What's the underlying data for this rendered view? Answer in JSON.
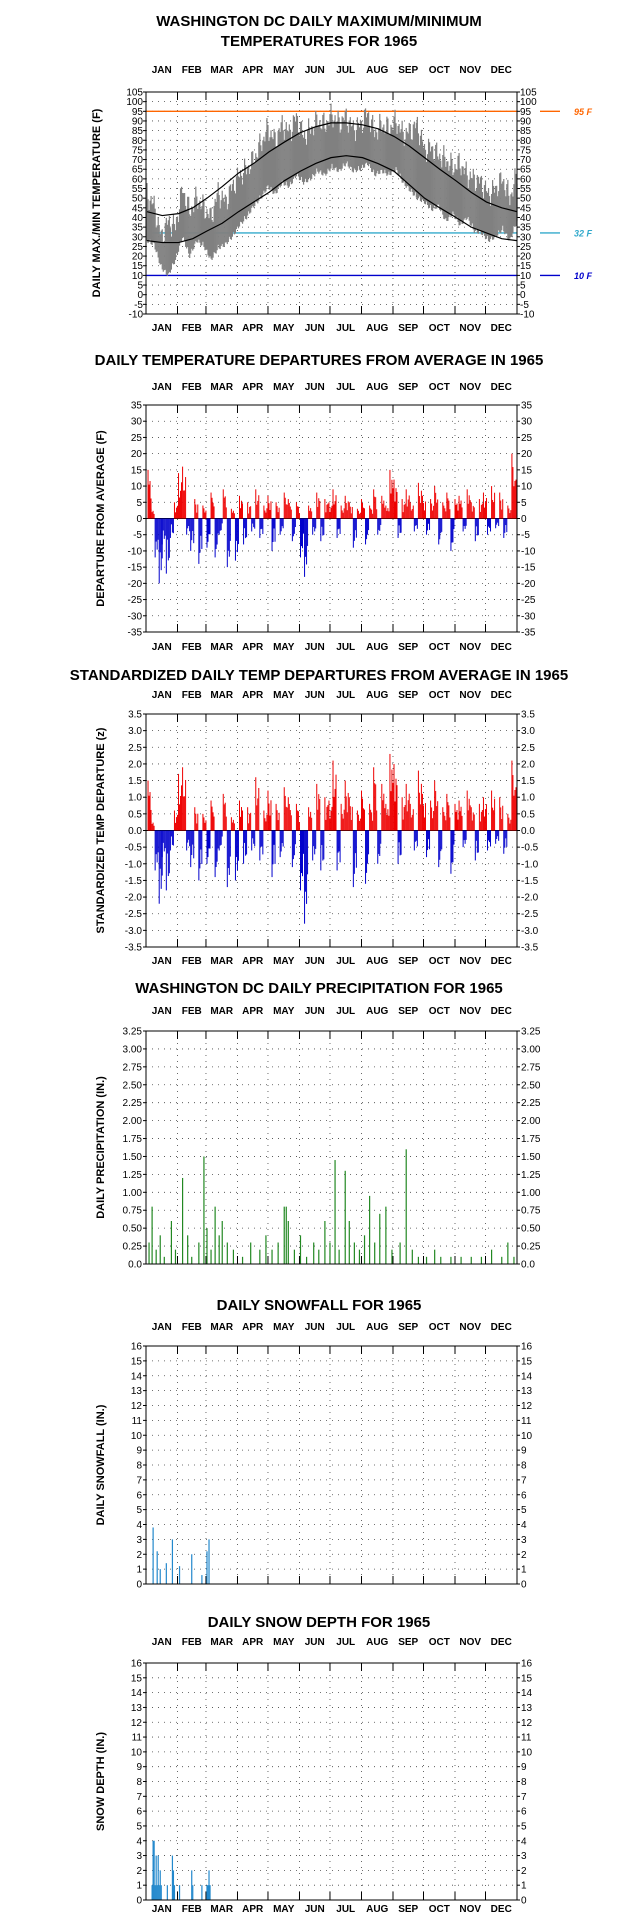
{
  "chart_data": [
    {
      "type": "line",
      "title_lines": [
        "WASHINGTON DC DAILY MAXIMUM/MINIMUM",
        "TEMPERATURES FOR 1965"
      ],
      "ylabel": "DAILY MAX./MIN TEMPERATURE (F)",
      "ylim": [
        -10,
        105
      ],
      "yticks": [
        -10,
        -5,
        0,
        5,
        10,
        15,
        20,
        25,
        30,
        35,
        40,
        45,
        50,
        55,
        60,
        65,
        70,
        75,
        80,
        85,
        90,
        95,
        100,
        105
      ],
      "months": [
        "JAN",
        "FEB",
        "MAR",
        "APR",
        "MAY",
        "JUN",
        "JUL",
        "AUG",
        "SEP",
        "OCT",
        "NOV",
        "DEC"
      ],
      "reference_lines": [
        {
          "label": "95 F",
          "value": 95,
          "color": "#ff6600"
        },
        {
          "label": "32 F",
          "value": 32,
          "color": "#33aacc"
        },
        {
          "label": "10 F",
          "value": 10,
          "color": "#0000cc"
        }
      ],
      "normals": {
        "max": {
          "day": [
            1,
            16,
            32,
            46,
            60,
            75,
            91,
            106,
            121,
            136,
            152,
            167,
            182,
            197,
            213,
            228,
            244,
            259,
            274,
            289,
            305,
            320,
            335,
            350,
            365
          ],
          "value": [
            43,
            41,
            42,
            45,
            50,
            56,
            63,
            68,
            74,
            79,
            84,
            87,
            89,
            89,
            88,
            86,
            82,
            77,
            71,
            65,
            59,
            53,
            48,
            45,
            43
          ]
        },
        "min": {
          "day": [
            1,
            16,
            32,
            46,
            60,
            75,
            91,
            106,
            121,
            136,
            152,
            167,
            182,
            197,
            213,
            228,
            244,
            259,
            274,
            289,
            305,
            320,
            335,
            350,
            365
          ],
          "value": [
            28,
            27,
            27,
            29,
            33,
            37,
            43,
            48,
            53,
            59,
            64,
            68,
            71,
            72,
            71,
            68,
            64,
            57,
            50,
            45,
            40,
            35,
            32,
            29,
            28
          ]
        }
      },
      "observed": {
        "max": {
          "day": [
            1,
            8,
            15,
            22,
            29,
            36,
            43,
            50,
            57,
            64,
            71,
            78,
            85,
            92,
            99,
            106,
            113,
            120,
            127,
            134,
            141,
            148,
            155,
            162,
            169,
            176,
            183,
            190,
            197,
            204,
            211,
            218,
            225,
            232,
            239,
            246,
            253,
            260,
            267,
            274,
            281,
            288,
            295,
            302,
            309,
            316,
            323,
            330,
            337,
            344,
            351,
            358,
            365
          ],
          "value": [
            52,
            46,
            30,
            38,
            35,
            55,
            43,
            50,
            45,
            40,
            53,
            48,
            56,
            62,
            65,
            70,
            78,
            86,
            80,
            88,
            84,
            92,
            82,
            86,
            90,
            88,
            93,
            89,
            92,
            86,
            88,
            94,
            84,
            88,
            86,
            90,
            83,
            85,
            88,
            75,
            76,
            72,
            70,
            66,
            68,
            62,
            60,
            58,
            52,
            55,
            60,
            50,
            62
          ]
        },
        "min": {
          "day": [
            1,
            8,
            15,
            22,
            29,
            36,
            43,
            50,
            57,
            64,
            71,
            78,
            85,
            92,
            99,
            106,
            113,
            120,
            127,
            134,
            141,
            148,
            155,
            162,
            169,
            176,
            183,
            190,
            197,
            204,
            211,
            218,
            225,
            232,
            239,
            246,
            253,
            260,
            267,
            274,
            281,
            288,
            295,
            302,
            309,
            316,
            323,
            330,
            337,
            344,
            351,
            358,
            365
          ],
          "value": [
            30,
            28,
            16,
            12,
            20,
            32,
            22,
            30,
            27,
            20,
            26,
            28,
            32,
            38,
            42,
            48,
            52,
            58,
            54,
            60,
            58,
            64,
            60,
            62,
            66,
            64,
            68,
            66,
            70,
            66,
            67,
            70,
            64,
            66,
            64,
            67,
            60,
            56,
            52,
            50,
            46,
            48,
            40,
            44,
            38,
            42,
            35,
            34,
            30,
            32,
            36,
            30,
            40
          ]
        }
      }
    },
    {
      "type": "bar",
      "title": "DAILY TEMPERATURE DEPARTURES FROM AVERAGE IN 1965",
      "ylabel": "DEPARTURE FROM AVERAGE (F)",
      "ylim": [
        -35,
        35
      ],
      "yticks": [
        -35,
        -30,
        -25,
        -20,
        -15,
        -10,
        -5,
        0,
        5,
        10,
        15,
        20,
        25,
        30,
        35
      ],
      "months": [
        "JAN",
        "FEB",
        "MAR",
        "APR",
        "MAY",
        "JUN",
        "JUL",
        "AUG",
        "SEP",
        "OCT",
        "NOV",
        "DEC"
      ],
      "colors": {
        "positive": "#ee0000",
        "negative": "#0000cc"
      },
      "x": [
        2,
        5,
        9,
        13,
        16,
        20,
        24,
        28,
        32,
        36,
        40,
        44,
        48,
        52,
        56,
        60,
        64,
        68,
        72,
        76,
        80,
        84,
        88,
        92,
        96,
        100,
        104,
        108,
        112,
        116,
        120,
        124,
        128,
        132,
        136,
        140,
        144,
        148,
        152,
        156,
        160,
        164,
        168,
        172,
        176,
        180,
        184,
        188,
        192,
        196,
        200,
        204,
        208,
        212,
        216,
        220,
        224,
        228,
        232,
        236,
        240,
        244,
        248,
        252,
        256,
        260,
        264,
        268,
        272,
        276,
        280,
        284,
        288,
        292,
        296,
        300,
        304,
        308,
        312,
        316,
        320,
        324,
        328,
        332,
        336,
        340,
        344,
        348,
        352,
        356,
        360,
        364
      ],
      "values": [
        15,
        3,
        -12,
        -20,
        -8,
        -17,
        -6,
        5,
        14,
        16,
        -5,
        -10,
        6,
        -14,
        4,
        -9,
        8,
        -12,
        -5,
        9,
        -15,
        3,
        -13,
        7,
        -8,
        5,
        -4,
        9,
        -6,
        4,
        7,
        -10,
        5,
        -5,
        8,
        6,
        -7,
        5,
        -12,
        -18,
        4,
        -5,
        8,
        -7,
        6,
        5,
        9,
        -6,
        4,
        7,
        5,
        -9,
        3,
        6,
        -8,
        4,
        9,
        -5,
        7,
        4,
        15,
        12,
        -6,
        6,
        9,
        5,
        -4,
        11,
        7,
        -5,
        6,
        10,
        -8,
        5,
        8,
        -10,
        6,
        7,
        -4,
        9,
        5,
        -7,
        6,
        8,
        -5,
        10,
        -3,
        8,
        -6,
        4,
        20,
        12
      ]
    },
    {
      "type": "bar",
      "title": "STANDARDIZED DAILY TEMP DEPARTURES FROM AVERAGE IN 1965",
      "ylabel": "STANDARDIZED TEMP DEPARTURE (z)",
      "ylim": [
        -3.5,
        3.5
      ],
      "yticks": [
        "-3.5",
        "-3.0",
        "-2.5",
        "-2.0",
        "-1.5",
        "-1.0",
        "-0.5",
        "0.0",
        "0.5",
        "1.0",
        "1.5",
        "2.0",
        "2.5",
        "3.0",
        "3.5"
      ],
      "months": [
        "JAN",
        "FEB",
        "MAR",
        "APR",
        "MAY",
        "JUN",
        "JUL",
        "AUG",
        "SEP",
        "OCT",
        "NOV",
        "DEC"
      ],
      "colors": {
        "positive": "#ee0000",
        "negative": "#0000cc"
      },
      "x": [
        2,
        5,
        9,
        13,
        16,
        20,
        24,
        28,
        32,
        36,
        40,
        44,
        48,
        52,
        56,
        60,
        64,
        68,
        72,
        76,
        80,
        84,
        88,
        92,
        96,
        100,
        104,
        108,
        112,
        116,
        120,
        124,
        128,
        132,
        136,
        140,
        144,
        148,
        152,
        156,
        160,
        164,
        168,
        172,
        176,
        180,
        184,
        188,
        192,
        196,
        200,
        204,
        208,
        212,
        216,
        220,
        224,
        228,
        232,
        236,
        240,
        244,
        248,
        252,
        256,
        260,
        264,
        268,
        272,
        276,
        280,
        284,
        288,
        292,
        296,
        300,
        304,
        308,
        312,
        316,
        320,
        324,
        328,
        332,
        336,
        340,
        344,
        348,
        352,
        356,
        360,
        364
      ],
      "values": [
        1.5,
        0.3,
        -1.2,
        -2.2,
        -0.8,
        -1.8,
        -0.6,
        0.6,
        1.7,
        1.9,
        -0.6,
        -1.1,
        0.7,
        -1.5,
        0.5,
        -1.0,
        0.9,
        -1.4,
        -0.6,
        1.1,
        -1.7,
        0.4,
        -1.5,
        0.9,
        -1.0,
        0.7,
        -0.6,
        1.6,
        -0.9,
        0.6,
        1.2,
        -1.4,
        0.8,
        -0.8,
        1.3,
        1.0,
        -1.1,
        0.8,
        -1.8,
        -2.8,
        0.7,
        -0.9,
        1.4,
        -1.2,
        1.0,
        0.9,
        2.1,
        -1.2,
        0.8,
        1.5,
        1.0,
        -1.7,
        0.6,
        1.2,
        -1.6,
        0.8,
        1.9,
        -1.0,
        1.4,
        0.8,
        2.3,
        2.0,
        -1.0,
        1.0,
        1.4,
        0.8,
        -0.6,
        1.8,
        1.1,
        -0.8,
        0.9,
        1.5,
        -1.1,
        0.7,
        1.1,
        -1.3,
        0.8,
        0.9,
        -0.5,
        1.2,
        0.7,
        -0.9,
        0.8,
        1.0,
        -0.6,
        1.2,
        -0.4,
        1.0,
        -0.7,
        0.5,
        2.1,
        1.3
      ]
    },
    {
      "type": "bar",
      "title": "WASHINGTON DC DAILY PRECIPITATION FOR 1965",
      "ylabel": "DAILY PRECIPITATION (IN.)",
      "ylim": [
        0,
        3.25
      ],
      "yticks": [
        "0.0",
        "0.25",
        "0.50",
        "0.75",
        "1.00",
        "1.25",
        "1.50",
        "1.75",
        "2.00",
        "2.25",
        "2.50",
        "2.75",
        "3.00",
        "3.25"
      ],
      "months": [
        "JAN",
        "FEB",
        "MAR",
        "APR",
        "MAY",
        "JUN",
        "JUL",
        "AUG",
        "SEP",
        "OCT",
        "NOV",
        "DEC"
      ],
      "color": "#228822",
      "x": [
        3,
        6,
        10,
        14,
        18,
        25,
        29,
        36,
        41,
        45,
        52,
        57,
        60,
        64,
        68,
        72,
        75,
        80,
        86,
        95,
        103,
        112,
        118,
        124,
        130,
        136,
        138,
        140,
        146,
        152,
        158,
        165,
        170,
        176,
        181,
        186,
        190,
        196,
        200,
        205,
        210,
        215,
        220,
        225,
        230,
        236,
        242,
        250,
        256,
        262,
        268,
        276,
        284,
        290,
        300,
        310,
        320,
        330,
        340,
        350,
        356,
        362
      ],
      "values": [
        0.3,
        0.8,
        0.2,
        0.4,
        0.1,
        0.6,
        0.2,
        1.2,
        0.4,
        0.1,
        0.3,
        1.5,
        0.5,
        0.2,
        0.8,
        0.4,
        0.6,
        0.3,
        0.2,
        0.1,
        0.3,
        0.2,
        0.4,
        0.2,
        0.3,
        0.8,
        0.8,
        0.6,
        0.2,
        0.4,
        0.1,
        0.3,
        0.2,
        0.6,
        0.3,
        1.45,
        0.2,
        1.3,
        0.6,
        0.3,
        0.2,
        0.4,
        0.95,
        0.3,
        0.7,
        0.8,
        0.2,
        0.3,
        1.6,
        0.2,
        0.1,
        0.1,
        0.2,
        0.1,
        0.1,
        0.1,
        0.1,
        0.1,
        0.2,
        0.1,
        0.3,
        0.1
      ]
    },
    {
      "type": "bar",
      "title": "DAILY SNOWFALL FOR 1965",
      "ylabel": "DAILY SNOWFALL (IN.)",
      "ylim": [
        0,
        16
      ],
      "yticks": [
        0,
        1,
        2,
        3,
        4,
        5,
        6,
        7,
        8,
        9,
        10,
        11,
        12,
        13,
        14,
        15,
        16
      ],
      "months": [
        "JAN",
        "FEB",
        "MAR",
        "APR",
        "MAY",
        "JUN",
        "JUL",
        "AUG",
        "SEP",
        "OCT",
        "NOV",
        "DEC"
      ],
      "color": "#2288cc",
      "x": [
        7,
        11,
        14,
        20,
        26,
        33,
        45,
        55,
        60,
        62
      ],
      "values": [
        3.8,
        2.2,
        1.0,
        1.4,
        3.0,
        1.2,
        2.0,
        0.6,
        2.2,
        3.0
      ]
    },
    {
      "type": "bar",
      "title": "DAILY SNOW DEPTH FOR 1965",
      "ylabel": "SNOW DEPTH (IN.)",
      "ylim": [
        0,
        16
      ],
      "yticks": [
        0,
        1,
        2,
        3,
        4,
        5,
        6,
        7,
        8,
        9,
        10,
        11,
        12,
        13,
        14,
        15,
        16
      ],
      "months": [
        "JAN",
        "FEB",
        "MAR",
        "APR",
        "MAY",
        "JUN",
        "JUL",
        "AUG",
        "SEP",
        "OCT",
        "NOV",
        "DEC"
      ],
      "color": "#2288cc",
      "x": [
        6,
        7,
        8,
        9,
        10,
        11,
        12,
        13,
        14,
        15,
        21,
        26,
        27,
        28,
        33,
        45,
        46,
        55,
        60,
        61,
        62,
        63
      ],
      "values": [
        1,
        4,
        4,
        1,
        3,
        1,
        3,
        1,
        2,
        1,
        1,
        3,
        2,
        1,
        1,
        2,
        1,
        1,
        1,
        1,
        2,
        1
      ]
    }
  ]
}
